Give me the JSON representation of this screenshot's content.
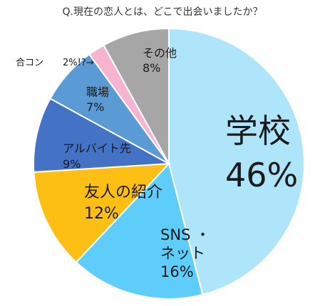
{
  "chart_data": {
    "type": "pie",
    "title": "Q.現在の恋人とは、どこで出会いましたか？",
    "slices": [
      {
        "label": "学校",
        "value": 46,
        "value_label": "46%",
        "color": "#aee5fb"
      },
      {
        "label": "SNS・ネット",
        "value": 16,
        "value_label": "16%",
        "color": "#5fcdfb"
      },
      {
        "label": "友人の紹介",
        "value": 12,
        "value_label": "12%",
        "color": "#fdbf13"
      },
      {
        "label": "アルバイト先",
        "value": 9,
        "value_label": "9%",
        "color": "#4472c4"
      },
      {
        "label": "職場",
        "value": 7,
        "value_label": "7%",
        "color": "#5b9bd5"
      },
      {
        "label": "合コン",
        "value": 2,
        "value_label": "2%!?→",
        "color": "#f7b4d0"
      },
      {
        "label": "その他",
        "value": 8,
        "value_label": "8%",
        "color": "#a6a6a6"
      }
    ]
  }
}
